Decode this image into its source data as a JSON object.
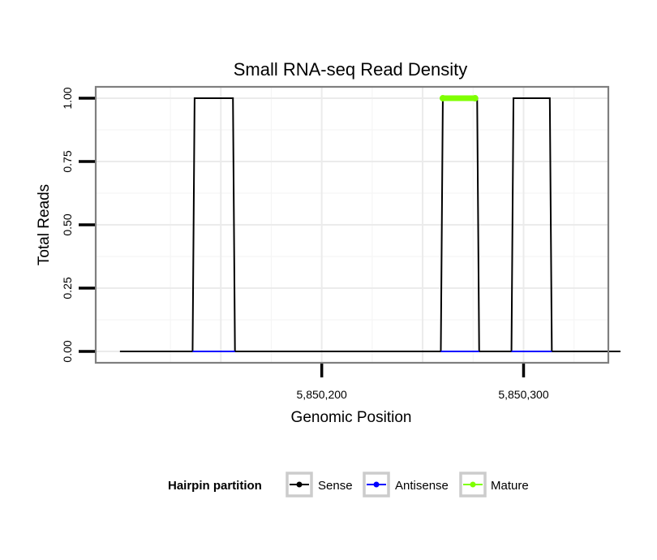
{
  "chart_data": {
    "type": "line",
    "title": "Small RNA-seq Read Density",
    "xlabel": "Genomic Position",
    "ylabel": "Total Reads",
    "xlim": [
      5850088,
      5850342
    ],
    "ylim": [
      -0.045,
      1.045
    ],
    "x_ticks": [
      5850200,
      5850300
    ],
    "x_tick_labels": [
      "5,850,200",
      "5,850,300"
    ],
    "y_ticks": [
      0,
      0.25,
      0.5,
      0.75,
      1
    ],
    "y_tick_labels": [
      "0.00",
      "0.25",
      "0.50",
      "0.75",
      "1.00"
    ],
    "grid": true,
    "legend": {
      "title": "Hairpin partition",
      "position": "bottom"
    },
    "series": [
      {
        "name": "Sense",
        "color": "#000000",
        "x": [
          5850100,
          5850136,
          5850137,
          5850156,
          5850157,
          5850259,
          5850260,
          5850277,
          5850278,
          5850294,
          5850295,
          5850313,
          5850314,
          5850348
        ],
        "y": [
          0,
          0,
          1,
          1,
          0,
          0,
          1,
          1,
          0,
          0,
          1,
          1,
          0,
          0
        ]
      },
      {
        "name": "Antisense",
        "color": "#0000ff",
        "x": [
          5850136,
          5850157,
          5850259,
          5850278,
          5850294,
          5850314
        ],
        "y": [
          0,
          0,
          0,
          0,
          0,
          0
        ],
        "segments": [
          [
            0,
            1
          ],
          [
            2,
            3
          ],
          [
            4,
            5
          ]
        ]
      },
      {
        "name": "Mature",
        "color": "#7fff00",
        "x": [
          5850260,
          5850276
        ],
        "y": [
          1,
          1
        ]
      }
    ]
  }
}
